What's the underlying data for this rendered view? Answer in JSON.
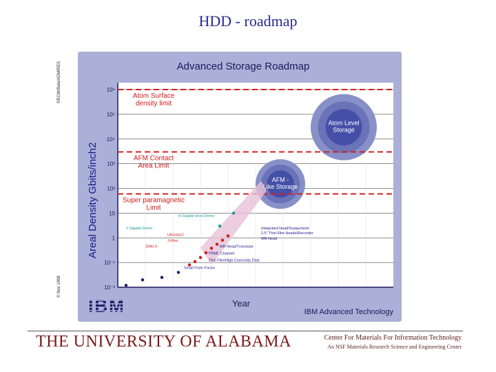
{
  "slide": {
    "title": "HDD - roadmap",
    "copyright_left": "©ECW/Bala/ADMIRES",
    "copyright_bottom": "© Nov 1998"
  },
  "footer": {
    "university": "THE UNIVERSITY OF ALABAMA",
    "center_line1": "Center For Materials For Information Technology",
    "center_line2": "An NSF Materials Research Science and Engineering Center"
  },
  "colors": {
    "frame": "#aab0d8",
    "plot": "#ffffff",
    "limit_line": "#d02020",
    "label_red": "#cc1a1a",
    "label_blue": "#1a1a8a",
    "teal": "#1a9a9a",
    "bubble_outer": "#8890c8",
    "bubble_inner": "#4450a8"
  },
  "chart_data": {
    "type": "scatter",
    "title": "Advanced Storage Roadmap",
    "xlabel": "Year",
    "ylabel": "Areal Density Gbits/inch2",
    "y_scale": "log",
    "ylim": [
      0.01,
      1000000
    ],
    "y_ticks": [
      "10⁶",
      "10⁵",
      "10⁴",
      "10³",
      "10²",
      "10",
      "1",
      "10⁻¹",
      "10⁻²"
    ],
    "y_tick_values": [
      1000000,
      100000,
      10000,
      1000,
      100,
      10,
      1,
      0.1,
      0.01
    ],
    "grid": true,
    "limits": [
      {
        "label": "Atom Surface density limit",
        "value": 1000000
      },
      {
        "label": "AFM Contact Area Limit",
        "value": 3000
      },
      {
        "label": "Super paramagnetic Limit",
        "value": 60
      }
    ],
    "bubbles": [
      {
        "label": "Atom Level Storage",
        "value": 30000
      },
      {
        "label": "AFM - Like Storage",
        "value": 150
      }
    ],
    "annotations": [
      {
        "text": "N Gigabit level Demo",
        "color": "teal"
      },
      {
        "text": "1 Gigabit Demo",
        "color": "teal"
      },
      {
        "text": "Ultrastar2",
        "color": "red"
      },
      {
        "text": "Ji-Res",
        "color": "red"
      },
      {
        "text": "3390-9",
        "color": "red"
      },
      {
        "text": "Integrated Head/Suspension",
        "color": "blue"
      },
      {
        "text": "2.5\" Thin-Film Heads/Recorder",
        "color": "blue"
      },
      {
        "text": "MR Head",
        "color": "blue"
      },
      {
        "text": "MR Head/Transistor",
        "color": "blue"
      },
      {
        "text": "PRML Channel",
        "color": "blue"
      },
      {
        "text": "Thin Film/High Coercivity Disk",
        "color": "blue"
      },
      {
        "text": "Small Form Factor",
        "color": "blue"
      }
    ],
    "points": [
      {
        "x": 0.03,
        "y": 0.012,
        "color": "navy"
      },
      {
        "x": 0.09,
        "y": 0.02,
        "color": "navy"
      },
      {
        "x": 0.16,
        "y": 0.025,
        "color": "navy"
      },
      {
        "x": 0.22,
        "y": 0.04,
        "color": "navy"
      },
      {
        "x": 0.26,
        "y": 0.08,
        "color": "red"
      },
      {
        "x": 0.28,
        "y": 0.11,
        "color": "red"
      },
      {
        "x": 0.3,
        "y": 0.16,
        "color": "red"
      },
      {
        "x": 0.32,
        "y": 0.25,
        "color": "red"
      },
      {
        "x": 0.34,
        "y": 0.38,
        "color": "red"
      },
      {
        "x": 0.36,
        "y": 0.55,
        "color": "red"
      },
      {
        "x": 0.38,
        "y": 0.8,
        "color": "red"
      },
      {
        "x": 0.4,
        "y": 1.2,
        "color": "red"
      },
      {
        "x": 0.37,
        "y": 3,
        "color": "teal"
      },
      {
        "x": 0.42,
        "y": 10,
        "color": "teal"
      }
    ],
    "brand": "IBM",
    "footer_label": "IBM Advanced Technology"
  }
}
